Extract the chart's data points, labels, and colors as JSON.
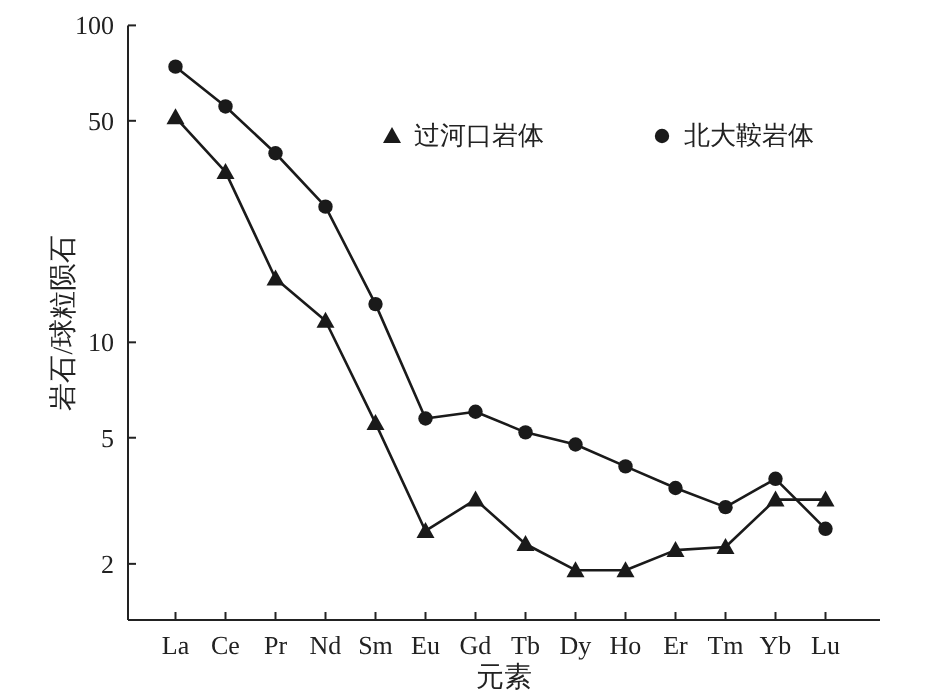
{
  "chart_data": {
    "type": "line",
    "xlabel": "元素",
    "ylabel": "岩石/球粒陨石",
    "categories": [
      "La",
      "Ce",
      "Pr",
      "Nd",
      "Sm",
      "Eu",
      "Gd",
      "Tb",
      "Dy",
      "Ho",
      "Er",
      "Tm",
      "Yb",
      "Lu"
    ],
    "series": [
      {
        "name": "过河口岩体",
        "color": "#1a1a1a",
        "marker": "triangle",
        "values": [
          51.3,
          34.5,
          15.9,
          11.7,
          5.56,
          2.54,
          3.19,
          2.31,
          1.91,
          1.91,
          2.21,
          2.26,
          3.19,
          3.19
        ]
      },
      {
        "name": "北大鞍岩体",
        "color": "#1a1a1a",
        "marker": "circle",
        "values": [
          74.1,
          55.5,
          39.5,
          26.8,
          13.2,
          5.75,
          6.04,
          5.2,
          4.76,
          4.06,
          3.47,
          3.02,
          3.71,
          2.58
        ]
      }
    ],
    "log": "y",
    "ylim": [
      1.33,
      100
    ],
    "yticks": [
      2,
      5,
      10,
      50,
      100
    ],
    "legend": "top right",
    "line_style": "solid"
  }
}
